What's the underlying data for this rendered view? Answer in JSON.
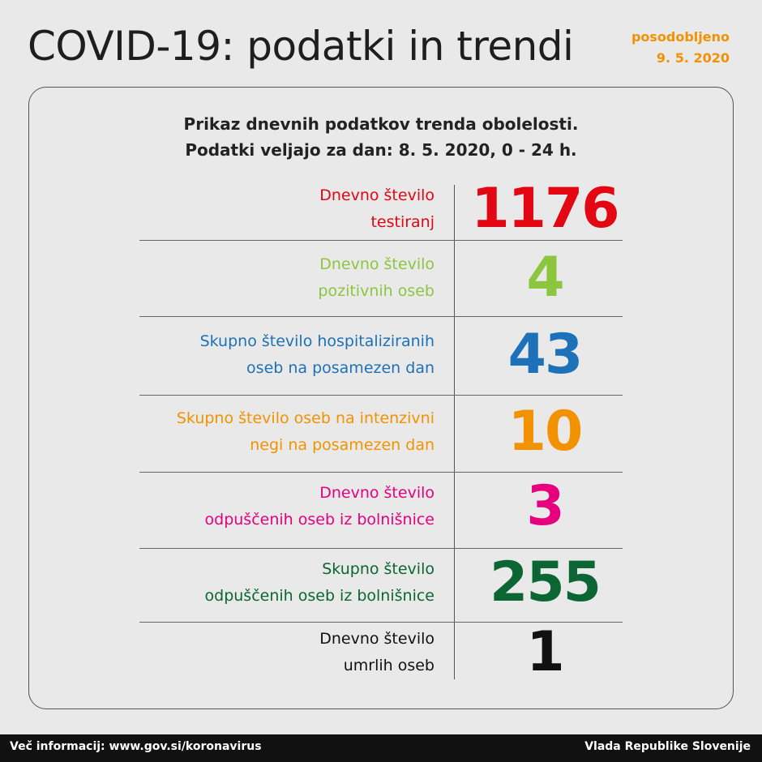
{
  "header": {
    "title": "COVID-19: podatki in trendi",
    "updated": [
      "posodobljeno",
      "9. 5. 2020"
    ]
  },
  "panel": {
    "subtitle": [
      "Prikaz dnevnih podatkov trenda obolelosti.",
      "Podatki veljajo za dan: 8. 5. 2020, 0 - 24 h."
    ],
    "rows": [
      {
        "label": [
          "Dnevno število",
          "testiranj"
        ],
        "value": 1176,
        "color": "#e30613"
      },
      {
        "label": [
          "Dnevno število",
          "pozitivnih oseb"
        ],
        "value": 4,
        "color": "#8cc63f"
      },
      {
        "label": [
          "Skupno število hospitaliziranih",
          "oseb na posamezen dan"
        ],
        "value": 43,
        "color": "#1d71b8"
      },
      {
        "label": [
          "Skupno število oseb na intenzivni",
          "negi na posamezen dan"
        ],
        "value": 10,
        "color": "#f39200"
      },
      {
        "label": [
          "Dnevno število",
          "odpuščenih oseb iz bolnišnice"
        ],
        "value": 3,
        "color": "#e6007e"
      },
      {
        "label": [
          "Skupno število",
          "odpuščenih oseb iz bolnišnice"
        ],
        "value": 255,
        "color": "#0b6633"
      },
      {
        "label": [
          "Dnevno število",
          "umrlih oseb"
        ],
        "value": 1,
        "color": "#111111"
      }
    ]
  },
  "footer": {
    "left": "Več informacij: www.gov.si/koronavirus",
    "right": "Vlada Republike Slovenije"
  }
}
